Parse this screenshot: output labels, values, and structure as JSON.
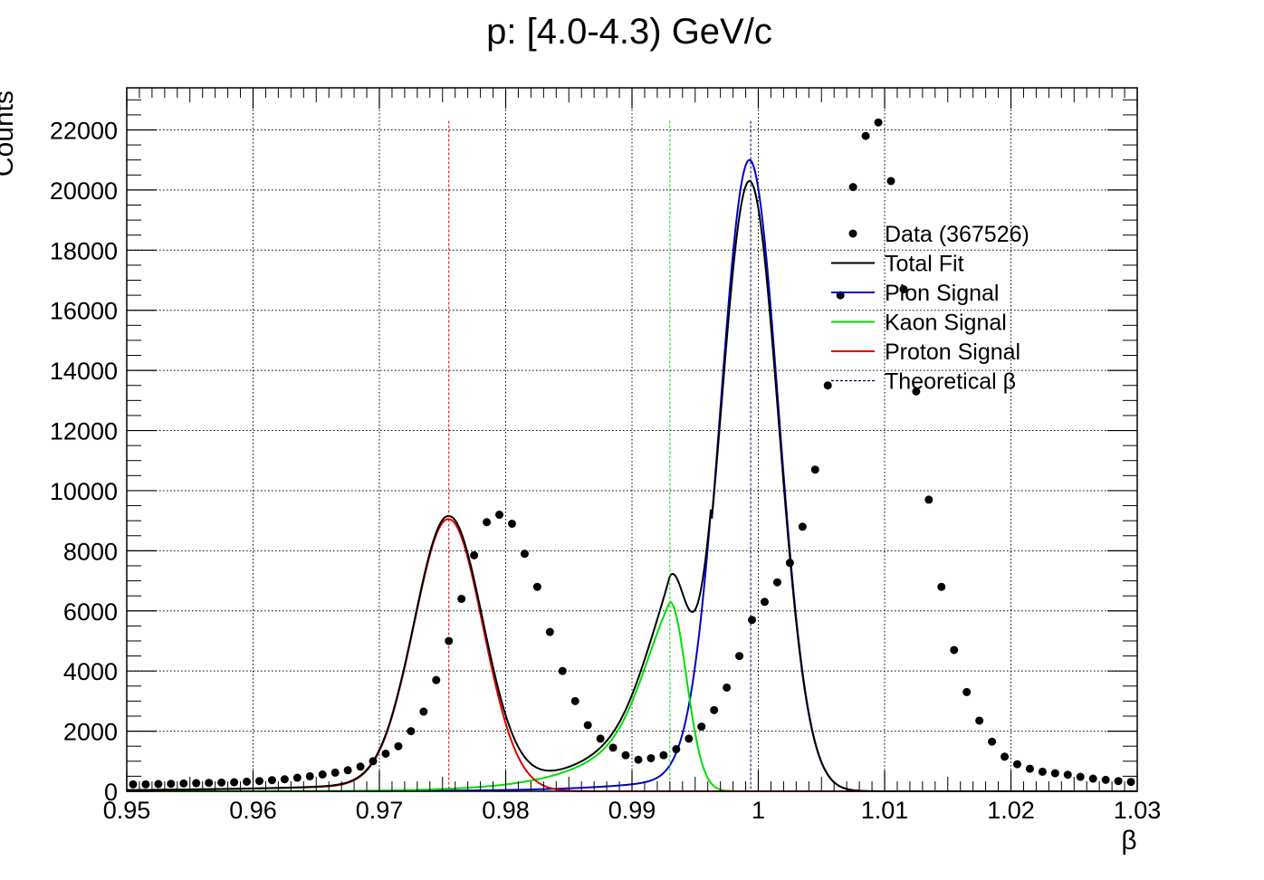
{
  "chart_data": {
    "type": "scatter",
    "title": "p: [4.0-4.3) GeV/c",
    "xlabel": "β",
    "ylabel": "Counts",
    "xlim": [
      0.95,
      1.03
    ],
    "ylim": [
      0,
      23400
    ],
    "grid": true,
    "legend_position": "top-right",
    "x_ticks": [
      0.95,
      0.96,
      0.97,
      0.98,
      0.99,
      1.0,
      1.01,
      1.02,
      1.03
    ],
    "x_tick_labels": [
      "0.95",
      "0.96",
      "0.97",
      "0.98",
      "0.99",
      "1",
      "1.01",
      "1.02",
      "1.03"
    ],
    "y_ticks": [
      0,
      2000,
      4000,
      6000,
      8000,
      10000,
      12000,
      14000,
      16000,
      18000,
      20000,
      22000
    ],
    "y_tick_labels": [
      "0",
      "2000",
      "4000",
      "6000",
      "8000",
      "10000",
      "12000",
      "14000",
      "16000",
      "18000",
      "20000",
      "22000"
    ],
    "legend": [
      {
        "label": "Data (367526)",
        "kind": "marker",
        "color": "#000000"
      },
      {
        "label": "Total Fit",
        "kind": "line",
        "color": "#000000"
      },
      {
        "label": "Pion Signal",
        "kind": "line",
        "color": "#0000cc"
      },
      {
        "label": "Kaon Signal",
        "kind": "line",
        "color": "#00dd00"
      },
      {
        "label": "Proton Signal",
        "kind": "line",
        "color": "#dd0000"
      },
      {
        "label": "Theoretical β",
        "kind": "dashed",
        "color": "#000066"
      }
    ],
    "data_series": {
      "name": "Data (367526)",
      "x": [
        0.9505,
        0.9515,
        0.9525,
        0.9535,
        0.9545,
        0.9555,
        0.9565,
        0.9575,
        0.9585,
        0.9595,
        0.9605,
        0.9615,
        0.9625,
        0.9635,
        0.9645,
        0.9655,
        0.9665,
        0.9675,
        0.9685,
        0.9695,
        0.9705,
        0.9715,
        0.9725,
        0.9735,
        0.9745,
        0.9755,
        0.9765,
        0.9775,
        0.9785,
        0.9795,
        0.9805,
        0.9815,
        0.9825,
        0.9835,
        0.9845,
        0.9855,
        0.9865,
        0.9875,
        0.9885,
        0.9895,
        0.9905,
        0.9915,
        0.9925,
        0.9935,
        0.9945,
        0.9955,
        0.9965,
        0.9975,
        0.9985,
        0.9995,
        1.0005,
        1.0015,
        1.0025,
        1.0035,
        1.0045,
        1.0055,
        1.0065,
        1.0075,
        1.0085,
        1.0095,
        1.0105,
        1.0115,
        1.0125,
        1.0135,
        1.0145,
        1.0155,
        1.0165,
        1.0175,
        1.0185,
        1.0195,
        1.0205,
        1.0215,
        1.0225,
        1.0235,
        1.0245,
        1.0255,
        1.0265,
        1.0275,
        1.0285,
        1.0295
      ],
      "y": [
        230,
        230,
        240,
        250,
        260,
        270,
        280,
        290,
        300,
        320,
        340,
        370,
        400,
        450,
        500,
        560,
        620,
        700,
        820,
        1000,
        1250,
        1500,
        2000,
        2650,
        3700,
        5000,
        6400,
        7850,
        8950,
        9200,
        8900,
        7900,
        6800,
        5300,
        4000,
        3000,
        2200,
        1750,
        1450,
        1200,
        1050,
        1100,
        1200,
        1400,
        1750,
        2150,
        2700,
        3450,
        4500,
        5700,
        6300,
        6950,
        7600,
        8800,
        10700,
        13500,
        16500,
        20100,
        21800,
        22250,
        20300,
        16700,
        13300,
        9700,
        6800,
        4700,
        3300,
        2350,
        1650,
        1150,
        900,
        750,
        650,
        600,
        550,
        480,
        420,
        380,
        340,
        310
      ]
    },
    "theoretical_beta": [
      {
        "species": "proton",
        "x": 0.9755,
        "color": "#dd0000"
      },
      {
        "species": "kaon",
        "x": 0.993,
        "color": "#00dd00"
      },
      {
        "species": "pion",
        "x": 0.9994,
        "color": "#000066"
      }
    ],
    "fit_components": {
      "proton": {
        "amplitude": 9050,
        "mean": 0.9755,
        "sigma": 0.0027,
        "color": "#dd0000"
      },
      "kaon": {
        "amplitude": 6300,
        "mean": 0.993,
        "sigma": 0.0013,
        "color": "#00dd00"
      },
      "pion": {
        "amplitude": 21000,
        "mean": 0.9993,
        "sigma": 0.0023,
        "color": "#0000cc"
      },
      "total_fit_color": "#000000"
    }
  }
}
